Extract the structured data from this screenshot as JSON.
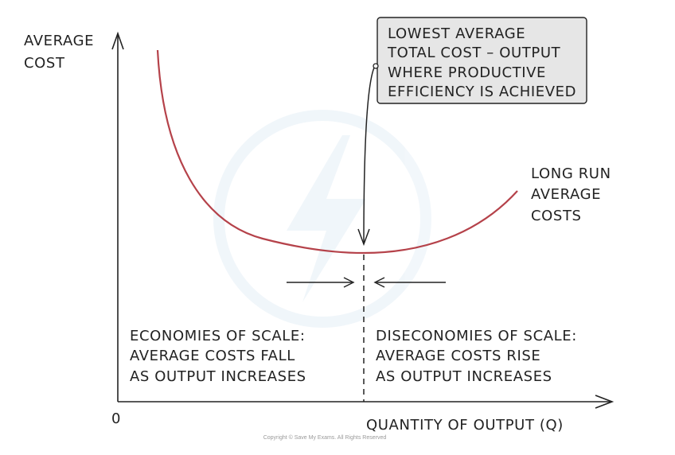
{
  "axes": {
    "y_label_line1": "AVERAGE",
    "y_label_line2": "COST",
    "x_label": "QUANTITY OF OUTPUT (Q)",
    "origin": "0"
  },
  "curve": {
    "label_line1": "LONG RUN",
    "label_line2": "AVERAGE",
    "label_line3": "COSTS",
    "color": "#b5424a"
  },
  "callout": {
    "line1": "LOWEST AVERAGE",
    "line2": "TOTAL COST – OUTPUT",
    "line3": "WHERE PRODUCTIVE",
    "line4": "EFFICIENCY IS ACHIEVED",
    "fill": "#e6e6e6"
  },
  "left_region": {
    "line1": "ECONOMIES OF SCALE:",
    "line2": "AVERAGE COSTS FALL",
    "line3": "AS OUTPUT INCREASES"
  },
  "right_region": {
    "line1": "DISECONOMIES OF SCALE:",
    "line2": "AVERAGE COSTS RISE",
    "line3": "AS OUTPUT INCREASES"
  },
  "footer": {
    "copyright": "Copyright © Save My Exams. All Rights Reserved"
  }
}
